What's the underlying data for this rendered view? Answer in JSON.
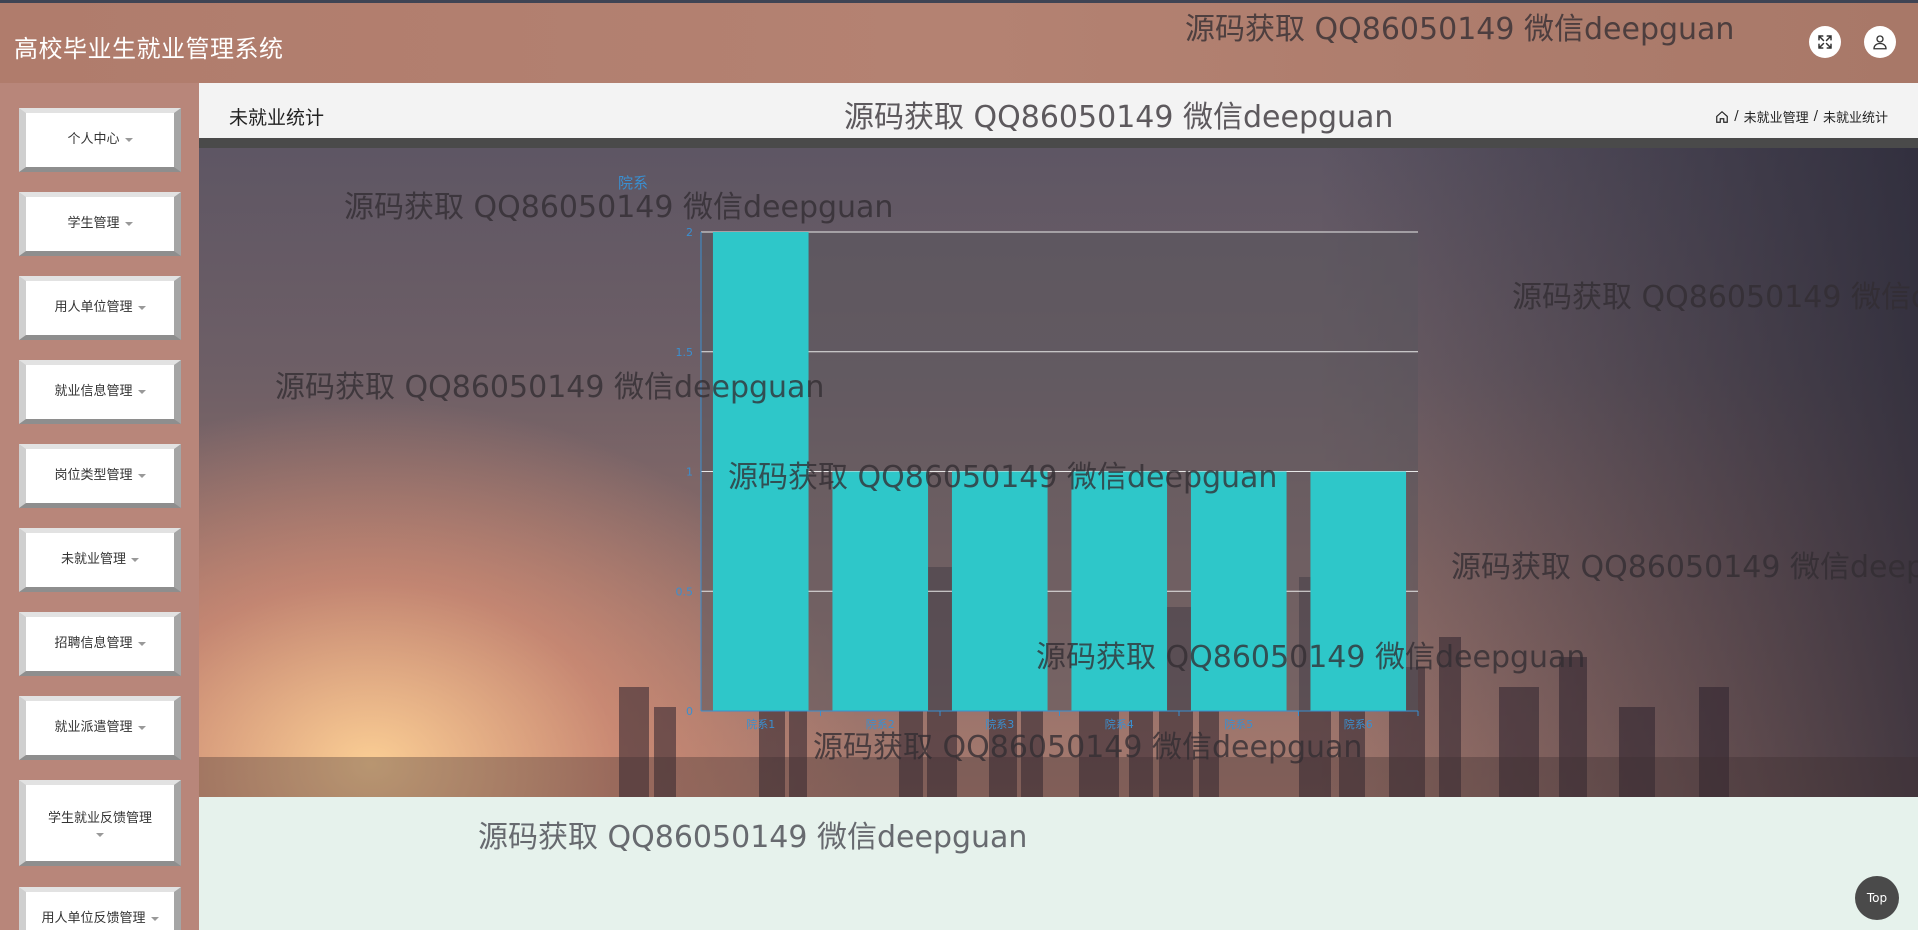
{
  "header": {
    "app_title": "高校毕业生就业管理系统",
    "fullscreen_icon": "expand-icon",
    "user_icon": "user-icon"
  },
  "sidebar": {
    "items": [
      {
        "label": "个人中心"
      },
      {
        "label": "学生管理"
      },
      {
        "label": "用人单位管理"
      },
      {
        "label": "就业信息管理"
      },
      {
        "label": "岗位类型管理"
      },
      {
        "label": "未就业管理"
      },
      {
        "label": "招聘信息管理"
      },
      {
        "label": "就业派遣管理"
      },
      {
        "label": "学生就业反馈管理"
      },
      {
        "label": "用人单位反馈管理"
      }
    ]
  },
  "page": {
    "title": "未就业统计",
    "breadcrumb": [
      "未就业管理",
      "未就业统计"
    ],
    "home_icon": "home-icon"
  },
  "chart_data": {
    "type": "bar",
    "title": "",
    "legend": "院系",
    "categories": [
      "院系1",
      "院系2",
      "院系3",
      "院系4",
      "院系5",
      "院系6"
    ],
    "values": [
      2,
      1,
      1,
      1,
      1,
      1
    ],
    "ylim": [
      0,
      2
    ],
    "yticks": [
      "0",
      "0.5",
      "1",
      "1.5",
      "2"
    ],
    "bar_color": "#2ec7c9",
    "grid": true
  },
  "watermark": "源码获取 QQ86050149 微信deepguan",
  "top_button": "Top"
}
